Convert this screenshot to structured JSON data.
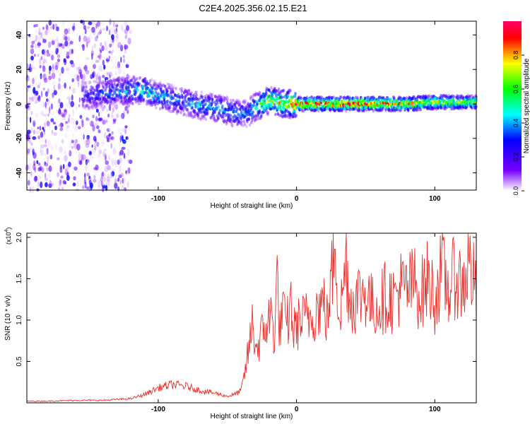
{
  "title": "C2E4.2025.356.02.15.E21",
  "chart_data": [
    {
      "type": "heatmap",
      "xlabel": "Height of straight line (km)",
      "ylabel": "Frequency (Hz)",
      "xlim": [
        -195,
        130
      ],
      "ylim": [
        -50,
        48
      ],
      "xticks": [
        -100,
        0,
        100
      ],
      "yticks": [
        -40,
        -20,
        0,
        20,
        40
      ],
      "colorbar": {
        "label": "Normalized spectral amplitude",
        "range": [
          0,
          1
        ],
        "ticks": [
          "0.0",
          "0.2",
          "0.4",
          "0.6",
          "0.8"
        ],
        "colors": [
          "#ffffff",
          "#7700ff",
          "#0000ff",
          "#00ffff",
          "#00ff00",
          "#ffff00",
          "#ff0000",
          "#ff0066"
        ]
      },
      "ridge": {
        "x": [
          -150,
          -140,
          -130,
          -120,
          -110,
          -100,
          -90,
          -80,
          -70,
          -60,
          -50,
          -40,
          -35,
          -30,
          -25,
          -20,
          -15,
          -10,
          -5,
          0,
          20,
          40,
          60,
          80,
          100,
          120,
          130
        ],
        "freq": [
          5,
          6,
          7,
          8,
          8,
          5,
          3,
          1,
          -1,
          -2,
          -4,
          -6,
          -5,
          -2,
          0,
          2,
          1,
          0,
          0,
          0,
          0,
          0,
          0,
          0,
          1,
          1,
          1
        ],
        "amplitude": [
          0.3,
          0.35,
          0.4,
          0.45,
          0.5,
          0.45,
          0.4,
          0.4,
          0.45,
          0.45,
          0.45,
          0.4,
          0.4,
          0.5,
          0.6,
          0.7,
          0.7,
          0.75,
          0.8,
          0.9,
          0.95,
          0.95,
          0.9,
          0.85,
          0.75,
          0.7,
          0.7
        ]
      }
    },
    {
      "type": "line",
      "xlabel": "Height of straight line (km)",
      "ylabel": "SNR (10 * v/v)",
      "yscale_label": "(x10",
      "yscale_exp": "4",
      "yscale_close": ")",
      "xlim": [
        -195,
        130
      ],
      "ylim": [
        0,
        2.05
      ],
      "xticks": [
        -100,
        0,
        100
      ],
      "yticks": [
        0.5,
        1.0,
        1.5,
        2.0
      ],
      "ytick_labels": [
        "0.5",
        "1.0",
        "1.5",
        "2.0"
      ],
      "color": "#e8302a",
      "series": {
        "x": [
          -195,
          -180,
          -160,
          -140,
          -130,
          -120,
          -110,
          -100,
          -90,
          -80,
          -70,
          -60,
          -55,
          -50,
          -45,
          -40,
          -38,
          -36,
          -34,
          -32,
          -30,
          -28,
          -26,
          -24,
          -22,
          -20,
          -18,
          -16,
          -14,
          -12,
          -10,
          -8,
          -6,
          -4,
          -2,
          0,
          5,
          10,
          15,
          20,
          22,
          25,
          28,
          30,
          32,
          34,
          36,
          38,
          40,
          45,
          50,
          55,
          60,
          65,
          70,
          75,
          80,
          85,
          90,
          95,
          100,
          105,
          110,
          115,
          120,
          125,
          130
        ],
        "y": [
          0.02,
          0.02,
          0.03,
          0.03,
          0.04,
          0.05,
          0.1,
          0.18,
          0.22,
          0.2,
          0.15,
          0.12,
          0.1,
          0.08,
          0.1,
          0.15,
          0.3,
          0.5,
          0.7,
          0.95,
          0.75,
          0.65,
          0.8,
          0.85,
          0.95,
          1.0,
          1.05,
          0.8,
          1.5,
          0.85,
          1.15,
          0.9,
          1.0,
          1.2,
          0.85,
          0.95,
          1.0,
          1.05,
          1.15,
          1.2,
          1.0,
          1.4,
          2.05,
          1.25,
          1.1,
          1.45,
          1.75,
          1.3,
          1.2,
          1.3,
          1.35,
          1.15,
          1.2,
          1.3,
          1.25,
          1.4,
          1.35,
          1.45,
          1.3,
          1.5,
          1.25,
          1.6,
          1.35,
          1.55,
          1.4,
          1.7,
          1.3
        ]
      }
    }
  ]
}
